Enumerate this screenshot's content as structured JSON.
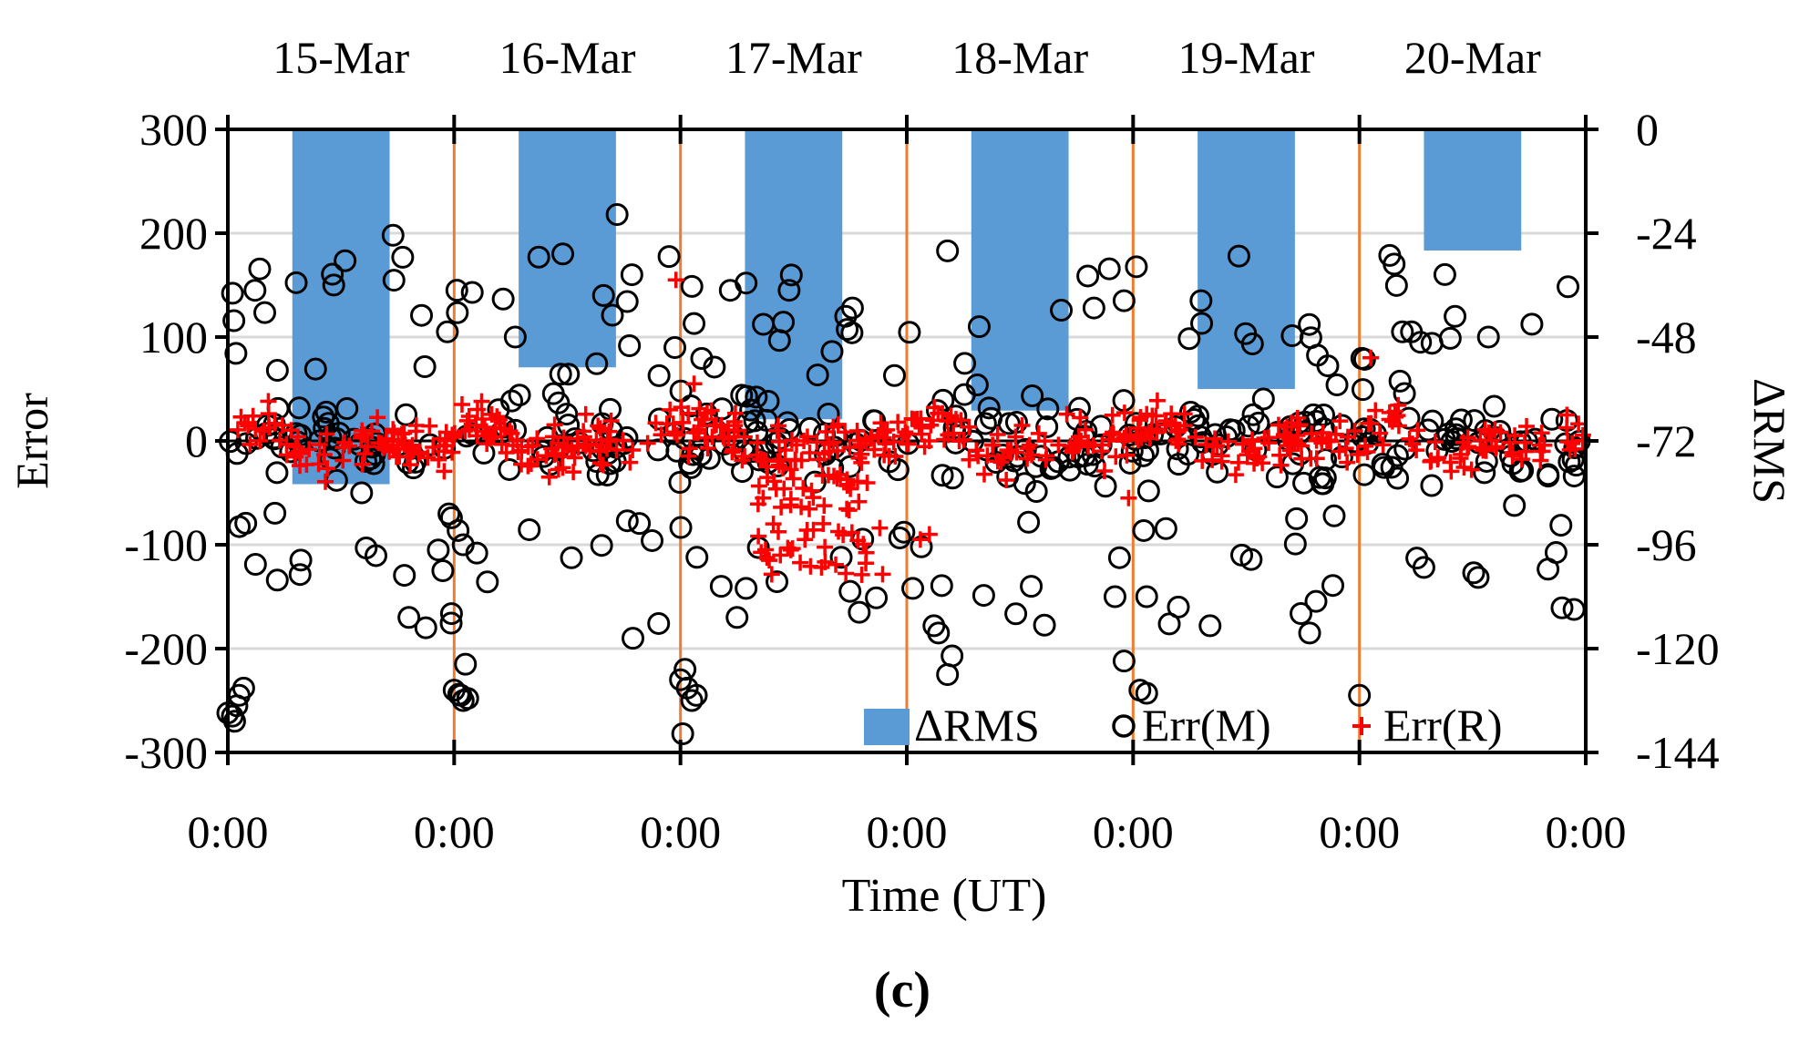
{
  "chart_data": {
    "type": "scatter",
    "title": "",
    "panel_label": "(c)",
    "xlabel": "Time (UT)",
    "ylabel_left": "Error",
    "ylabel_right": "ΔRMS",
    "x_tick_labels": [
      "0:00",
      "0:00",
      "0:00",
      "0:00",
      "0:00",
      "0:00",
      "0:00"
    ],
    "date_labels": [
      "15-Mar",
      "16-Mar",
      "17-Mar",
      "18-Mar",
      "19-Mar",
      "20-Mar"
    ],
    "xlim_days": [
      0,
      6
    ],
    "ylim_left": [
      -300,
      300
    ],
    "yticks_left": [
      300,
      200,
      100,
      0,
      -100,
      -200,
      -300
    ],
    "ylim_right": [
      -144,
      0
    ],
    "yticks_right": [
      0,
      -24,
      -48,
      -72,
      -96,
      -120,
      -144
    ],
    "grid": true,
    "day_separators": [
      1,
      2,
      3,
      4,
      5
    ],
    "legend_position": "bottom-right",
    "series": [
      {
        "name": "ΔRMS",
        "kind": "bar",
        "color": "#5b9bd5",
        "x": [
          0.5,
          1.5,
          2.5,
          3.5,
          4.5,
          5.5
        ],
        "values": [
          -82,
          -55,
          -67,
          -65,
          -60,
          -28
        ]
      },
      {
        "name": "Err(M)",
        "kind": "scatter-circle",
        "color": "#000000"
      },
      {
        "name": "Err(R)",
        "kind": "scatter-plus",
        "color": "#ff0000"
      }
    ],
    "separator_color": "#ed7d31"
  }
}
